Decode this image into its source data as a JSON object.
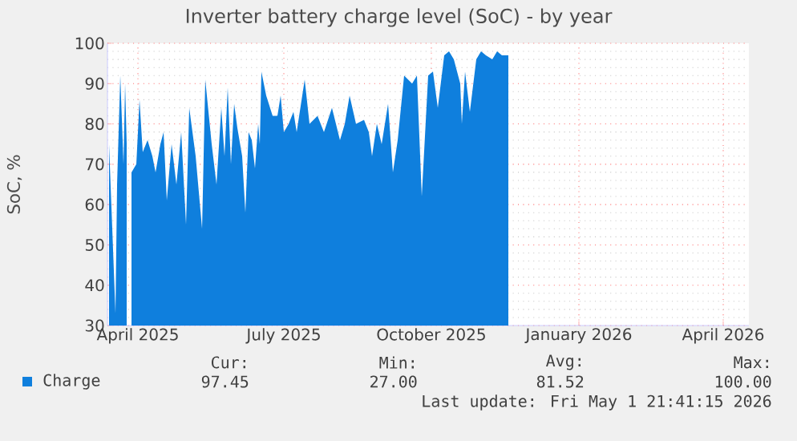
{
  "chart_data": {
    "type": "area",
    "title": "Inverter battery charge level (SoC) - by year",
    "ylabel": "SoC, %",
    "xlim": [
      "2025-03-13",
      "2026-04-17"
    ],
    "ylim": [
      30,
      100
    ],
    "xticks": [
      {
        "value": "2025-04-01",
        "label": "April 2025"
      },
      {
        "value": "2025-07-01",
        "label": "July 2025"
      },
      {
        "value": "2025-10-01",
        "label": "October 2025"
      },
      {
        "value": "2026-01-01",
        "label": "January 2026"
      },
      {
        "value": "2026-04-01",
        "label": "April 2026"
      }
    ],
    "yticks": [
      30,
      40,
      50,
      60,
      70,
      80,
      90,
      100
    ],
    "grid": true,
    "legend": "bottom",
    "annotations": [
      "Cur:",
      "97.45",
      "Min:",
      "27.00",
      "Avg:",
      "81.52",
      "Max:",
      "100.00",
      "Last update: Fri May  1 21:41:15 2026"
    ],
    "x": [
      "2025-03-14",
      "2025-03-18",
      "2025-03-19",
      "2025-03-21",
      "2025-03-23",
      "2025-03-24",
      "2025-03-25",
      "2025-03-26",
      "2025-03-28",
      "2025-03-31",
      "2025-04-02",
      "2025-04-04",
      "2025-04-07",
      "2025-04-10",
      "2025-04-12",
      "2025-04-15",
      "2025-04-17",
      "2025-04-19",
      "2025-04-22",
      "2025-04-25",
      "2025-04-28",
      "2025-05-01",
      "2025-05-03",
      "2025-05-07",
      "2025-05-11",
      "2025-05-13",
      "2025-05-17",
      "2025-05-20",
      "2025-05-23",
      "2025-05-25",
      "2025-05-27",
      "2025-05-29",
      "2025-05-31",
      "2025-06-02",
      "2025-06-05",
      "2025-06-07",
      "2025-06-09",
      "2025-06-11",
      "2025-06-13",
      "2025-06-15",
      "2025-06-16",
      "2025-06-17",
      "2025-06-20",
      "2025-06-24",
      "2025-06-27",
      "2025-06-29",
      "2025-07-01",
      "2025-07-04",
      "2025-07-07",
      "2025-07-09",
      "2025-07-14",
      "2025-07-17",
      "2025-07-22",
      "2025-07-26",
      "2025-07-31",
      "2025-08-05",
      "2025-08-08",
      "2025-08-11",
      "2025-08-15",
      "2025-08-20",
      "2025-08-23",
      "2025-08-25",
      "2025-08-28",
      "2025-08-31",
      "2025-09-04",
      "2025-09-07",
      "2025-09-10",
      "2025-09-14",
      "2025-09-19",
      "2025-09-22",
      "2025-09-25",
      "2025-09-29",
      "2025-10-02",
      "2025-10-05",
      "2025-10-09",
      "2025-10-12",
      "2025-10-15",
      "2025-10-19",
      "2025-10-20",
      "2025-10-22",
      "2025-10-25",
      "2025-10-29",
      "2025-11-01",
      "2025-11-04",
      "2025-11-08",
      "2025-11-11",
      "2025-11-14",
      "2025-11-18"
    ],
    "series": [
      {
        "name": "Charge",
        "color": "#0f7fdd",
        "values": [
          75,
          33,
          65,
          92,
          70,
          90,
          75,
          null,
          68,
          70,
          86,
          73,
          76,
          72,
          68,
          75,
          78,
          61,
          75,
          65,
          78,
          55,
          84,
          72,
          54,
          91,
          75,
          65,
          84,
          72,
          89,
          70,
          85,
          79,
          72,
          58,
          78,
          76,
          69,
          80,
          75,
          93,
          87,
          82,
          82,
          87,
          78,
          80,
          83,
          78,
          91,
          80,
          82,
          78,
          84,
          76,
          80,
          87,
          80,
          81,
          78,
          72,
          80,
          75,
          85,
          68,
          76,
          92,
          90,
          92,
          62,
          92,
          93,
          84,
          97,
          98,
          96,
          90,
          80,
          93,
          83,
          96,
          98,
          97,
          96,
          98,
          97,
          97
        ]
      }
    ]
  }
}
